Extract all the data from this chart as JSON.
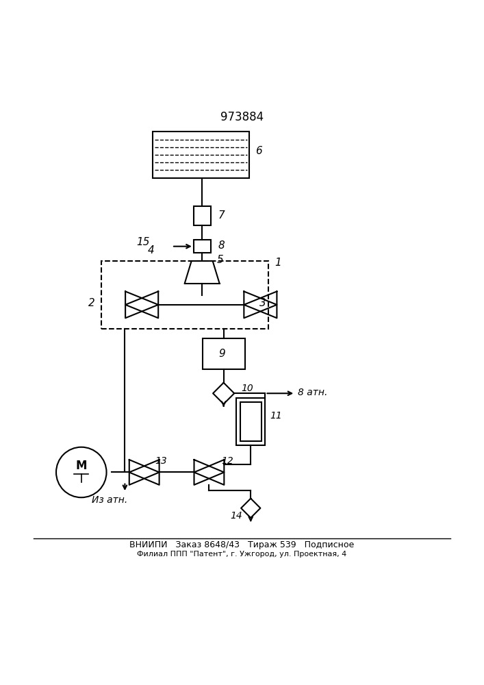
{
  "title": "973884",
  "bg_color": "#ffffff",
  "line_color": "#000000",
  "footer_line1": "ВНИИПИ   Заказ 8648/43   Тираж 539   Подписное",
  "footer_line2": "Филиал ППП \"Патент\", г. Ужгород, ул. Проектная, 4"
}
